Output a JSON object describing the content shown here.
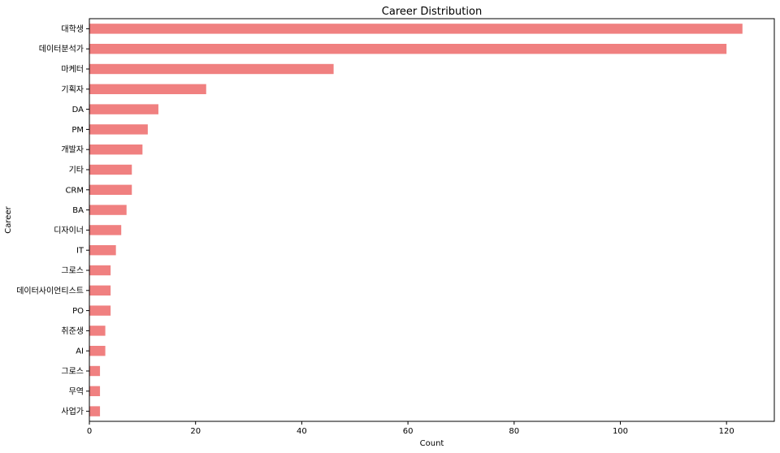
{
  "chart_data": {
    "type": "bar",
    "orientation": "horizontal",
    "title": "Career Distribution",
    "xlabel": "Count",
    "ylabel": "Career",
    "xlim": [
      0,
      129
    ],
    "xticks": [
      0,
      20,
      40,
      60,
      80,
      100,
      120
    ],
    "grid": false,
    "bar_color": "#F08080",
    "categories": [
      "대학생",
      "데이터분석가",
      "마케터",
      "기획자",
      "DA",
      "PM",
      "개발자",
      "기타",
      "CRM",
      "BA",
      "디자이너",
      "IT",
      "그로스",
      "데이터사이언티스트",
      "PO",
      "취준생",
      "AI",
      "그로스",
      "무역",
      "사업가"
    ],
    "values": [
      123,
      120,
      46,
      22,
      13,
      11,
      10,
      8,
      8,
      7,
      6,
      5,
      4,
      4,
      4,
      3,
      3,
      2,
      2,
      2
    ]
  }
}
